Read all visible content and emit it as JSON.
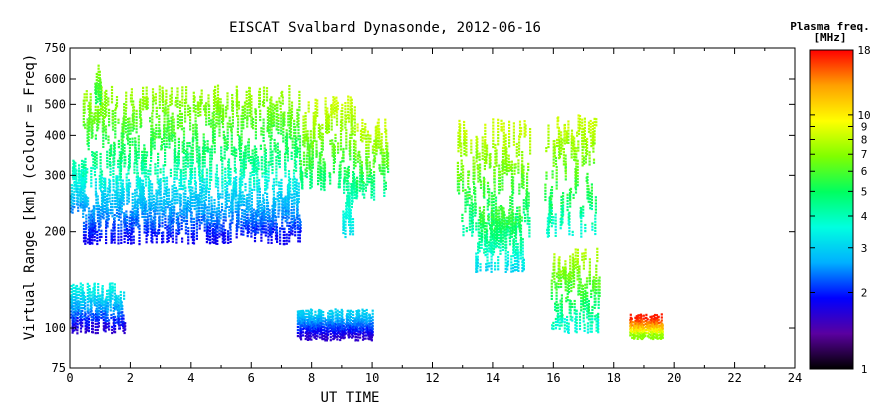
{
  "chart_data": {
    "type": "scatter",
    "title": "EISCAT Svalbard Dynasonde, 2012-06-16",
    "xlabel": "UT TIME",
    "ylabel": "Virtual Range [km] (colour = Freq)",
    "xlim": [
      0,
      24
    ],
    "ylim": [
      75,
      750
    ],
    "yscale": "log",
    "x_ticks": [
      0,
      2,
      4,
      6,
      8,
      10,
      12,
      14,
      16,
      18,
      20,
      22,
      24
    ],
    "y_ticks": [
      75,
      100,
      200,
      300,
      400,
      500,
      600,
      750
    ],
    "colorbar": {
      "title": "Plasma freq.",
      "unit": "[MHz]",
      "range": [
        1,
        18
      ],
      "scale": "log",
      "ticks": [
        1,
        2,
        3,
        4,
        5,
        6,
        7,
        8,
        9,
        10,
        18
      ],
      "colors": [
        "#000000",
        "#5a00a0",
        "#0000ff",
        "#00b0ff",
        "#00ffe0",
        "#00ff60",
        "#80ff00",
        "#ffff00",
        "#ffa000",
        "#ff0000"
      ]
    },
    "series": [
      {
        "x_range": [
          0.0,
          0.5
        ],
        "range_km": [
          235,
          330
        ],
        "freq_mhz": [
          2.4,
          4.2
        ]
      },
      {
        "x_range": [
          0.4,
          7.6
        ],
        "range_km": [
          190,
          290
        ],
        "freq_mhz": [
          1.8,
          3.3
        ]
      },
      {
        "x_range": [
          0.4,
          7.6
        ],
        "range_km": [
          280,
          560
        ],
        "freq_mhz": [
          3.5,
          7.5
        ]
      },
      {
        "x_range": [
          0.8,
          1.0
        ],
        "range_km": [
          520,
          650
        ],
        "freq_mhz": [
          5.0,
          7.0
        ]
      },
      {
        "x_range": [
          7.6,
          9.4
        ],
        "range_km": [
          280,
          520
        ],
        "freq_mhz": [
          4.5,
          8.5
        ]
      },
      {
        "x_range": [
          9.0,
          9.4
        ],
        "range_km": [
          200,
          300
        ],
        "freq_mhz": [
          3.2,
          4.5
        ]
      },
      {
        "x_range": [
          9.4,
          10.5
        ],
        "range_km": [
          260,
          440
        ],
        "freq_mhz": [
          4.0,
          8.5
        ]
      },
      {
        "x_range": [
          12.8,
          15.2
        ],
        "range_km": [
          200,
          440
        ],
        "freq_mhz": [
          4.0,
          8.5
        ]
      },
      {
        "x_range": [
          13.4,
          15.0
        ],
        "range_km": [
          155,
          235
        ],
        "freq_mhz": [
          3.0,
          6.0
        ]
      },
      {
        "x_range": [
          15.7,
          17.4
        ],
        "range_km": [
          200,
          460
        ],
        "freq_mhz": [
          3.5,
          8.5
        ]
      },
      {
        "x_range": [
          15.9,
          17.5
        ],
        "range_km": [
          100,
          175
        ],
        "freq_mhz": [
          3.5,
          8.0
        ]
      },
      {
        "x_range": [
          0.0,
          1.8
        ],
        "range_km": [
          100,
          135
        ],
        "freq_mhz": [
          1.6,
          3.5
        ]
      },
      {
        "x_range": [
          7.5,
          10.0
        ],
        "range_km": [
          95,
          112
        ],
        "freq_mhz": [
          1.6,
          3.0
        ]
      },
      {
        "x_range": [
          18.5,
          19.6
        ],
        "range_km": [
          96,
          108
        ],
        "freq_mhz": [
          7.0,
          17.0
        ]
      }
    ]
  }
}
